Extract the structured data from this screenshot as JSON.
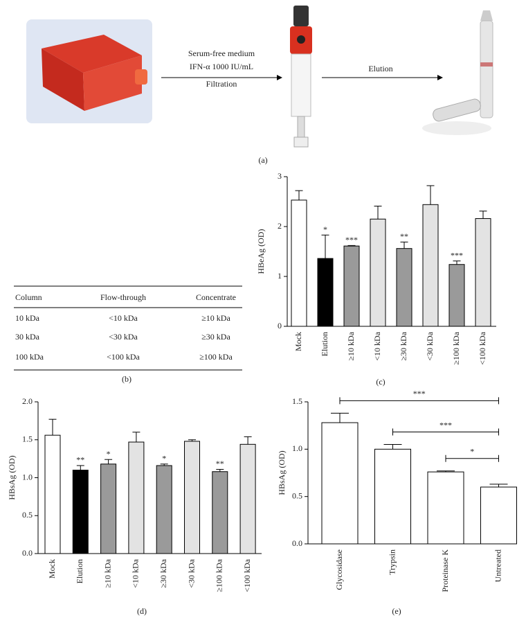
{
  "panel_a": {
    "line1": "Serum-free medium",
    "line2": "IFN-α 1000 IU/mL",
    "line3": "Filtration",
    "step2": "Elution",
    "label": "(a)"
  },
  "table": {
    "header": [
      "Column",
      "Flow-through",
      "Concentrate"
    ],
    "rows": [
      [
        "10 kDa",
        "<10 kDa",
        "≥10 kDa"
      ],
      [
        "30 kDa",
        "<30 kDa",
        "≥30 kDa"
      ],
      [
        "100 kDa",
        "<100 kDa",
        "≥100 kDa"
      ]
    ],
    "label": "(b)"
  },
  "chart_data": [
    {
      "type": "bar",
      "label": "(c)",
      "ylabel": "HBeAg (OD)",
      "categories": [
        "Mock",
        "Elution",
        "≥10 kDa",
        "<10 kDa",
        "≥30 kDa",
        "<30 kDa",
        "≥100 kDa",
        "<100 kDa"
      ],
      "values": [
        2.53,
        1.36,
        1.61,
        2.15,
        1.56,
        2.44,
        1.24,
        2.16
      ],
      "errors": [
        0.19,
        0.47,
        0.01,
        0.26,
        0.13,
        0.38,
        0.07,
        0.15
      ],
      "annotations": [
        null,
        "*",
        "***",
        null,
        "**",
        null,
        "***",
        null
      ],
      "colors": [
        "#ffffff",
        "#000000",
        "#9a9a9a",
        "#e3e3e3",
        "#9a9a9a",
        "#e3e3e3",
        "#9a9a9a",
        "#e3e3e3"
      ],
      "ylim": [
        0,
        3
      ],
      "yticks": [
        0,
        1,
        2,
        3
      ]
    },
    {
      "type": "bar",
      "label": "(d)",
      "ylabel": "HBsAg (OD)",
      "categories": [
        "Mock",
        "Elution",
        "≥10 kDa",
        "<10 kDa",
        "≥30 kDa",
        "<30 kDa",
        "≥100 kDa",
        "<100 kDa"
      ],
      "values": [
        1.56,
        1.1,
        1.18,
        1.47,
        1.16,
        1.48,
        1.08,
        1.44
      ],
      "errors": [
        0.21,
        0.06,
        0.06,
        0.13,
        0.02,
        0.02,
        0.03,
        0.1
      ],
      "annotations": [
        null,
        "**",
        "*",
        null,
        "*",
        null,
        "**",
        null
      ],
      "colors": [
        "#ffffff",
        "#000000",
        "#9a9a9a",
        "#e3e3e3",
        "#9a9a9a",
        "#e3e3e3",
        "#9a9a9a",
        "#e3e3e3"
      ],
      "ylim": [
        0,
        2
      ],
      "yticks": [
        {
          "value": 0,
          "label": "0.0"
        },
        {
          "value": 0.5,
          "label": "0.5"
        },
        {
          "value": 1,
          "label": "1.0"
        },
        {
          "value": 1.5,
          "label": "1.5"
        },
        {
          "value": 2,
          "label": "2.0"
        }
      ]
    },
    {
      "type": "bar",
      "label": "(e)",
      "ylabel": "HBsAg (OD)",
      "categories": [
        "Glycosidase",
        "Trypsin",
        "Proteinase K",
        "Untreated"
      ],
      "values": [
        1.28,
        1.0,
        0.76,
        0.6
      ],
      "errors": [
        0.1,
        0.05,
        0.01,
        0.03
      ],
      "colors": [
        "#ffffff",
        "#ffffff",
        "#ffffff",
        "#ffffff"
      ],
      "comparisons": [
        {
          "pair": [
            "Glycosidase",
            "Untreated"
          ],
          "label": "***"
        },
        {
          "pair": [
            "Trypsin",
            "Untreated"
          ],
          "label": "***"
        },
        {
          "pair": [
            "Proteinase K",
            "Untreated"
          ],
          "label": "*"
        }
      ],
      "ylim": [
        0,
        1.5
      ],
      "yticks": [
        {
          "value": 0,
          "label": "0.0"
        },
        {
          "value": 0.5,
          "label": "0.5"
        },
        {
          "value": 1,
          "label": "1.0"
        },
        {
          "value": 1.5,
          "label": "1.5"
        }
      ]
    }
  ]
}
